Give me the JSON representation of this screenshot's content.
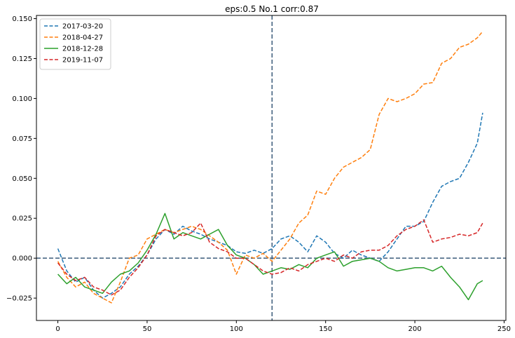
{
  "chart_data": {
    "type": "line",
    "title": "eps:0.5  No.1  corr:0.87",
    "xlabel": "",
    "ylabel": "",
    "xlim": [
      -12,
      251
    ],
    "ylim": [
      -0.039,
      0.152
    ],
    "xticks": [
      0,
      50,
      100,
      150,
      200,
      250
    ],
    "yticks": [
      -0.025,
      0.0,
      0.025,
      0.05,
      0.075,
      0.1,
      0.125,
      0.15
    ],
    "ytick_labels": [
      "−0.025",
      "0.000",
      "0.025",
      "0.050",
      "0.075",
      "0.100",
      "0.125",
      "0.150"
    ],
    "reference_lines": {
      "vertical_x": 120,
      "horizontal_y": 0.0,
      "color": "#3b5b7a"
    },
    "grid": false,
    "legend_placement": "top-left",
    "series": [
      {
        "name": "2017-03-20",
        "color": "#1f77b4",
        "dash": "dashed",
        "x": [
          0,
          5,
          10,
          15,
          20,
          25,
          30,
          35,
          40,
          45,
          50,
          55,
          60,
          65,
          70,
          75,
          80,
          85,
          90,
          95,
          100,
          105,
          110,
          115,
          120,
          125,
          130,
          135,
          140,
          145,
          150,
          155,
          160,
          165,
          170,
          175,
          180,
          185,
          190,
          195,
          200,
          205,
          210,
          215,
          220,
          225,
          230,
          235,
          238
        ],
        "values": [
          0.006,
          -0.008,
          -0.015,
          -0.012,
          -0.02,
          -0.025,
          -0.022,
          -0.018,
          -0.01,
          -0.005,
          0.002,
          0.012,
          0.018,
          0.015,
          0.02,
          0.017,
          0.015,
          0.012,
          0.01,
          0.008,
          0.004,
          0.003,
          0.005,
          0.003,
          0.006,
          0.012,
          0.014,
          0.01,
          0.004,
          0.014,
          0.01,
          0.003,
          0.0,
          0.005,
          0.002,
          0.0,
          -0.002,
          0.004,
          0.012,
          0.02,
          0.02,
          0.023,
          0.035,
          0.045,
          0.048,
          0.05,
          0.06,
          0.072,
          0.091
        ]
      },
      {
        "name": "2018-04-27",
        "color": "#ff7f0e",
        "dash": "dashed",
        "x": [
          0,
          5,
          10,
          15,
          20,
          25,
          30,
          35,
          40,
          45,
          50,
          55,
          60,
          65,
          70,
          75,
          80,
          85,
          90,
          95,
          100,
          105,
          110,
          115,
          120,
          125,
          130,
          135,
          140,
          145,
          150,
          155,
          160,
          165,
          170,
          175,
          180,
          185,
          190,
          195,
          200,
          205,
          210,
          215,
          220,
          225,
          230,
          235,
          238
        ],
        "values": [
          -0.002,
          -0.012,
          -0.018,
          -0.015,
          -0.022,
          -0.025,
          -0.028,
          -0.015,
          0.0,
          0.002,
          0.012,
          0.015,
          0.018,
          0.016,
          0.018,
          0.02,
          0.018,
          0.014,
          0.01,
          0.005,
          -0.01,
          0.002,
          0.0,
          0.003,
          -0.002,
          0.005,
          0.012,
          0.022,
          0.027,
          0.042,
          0.04,
          0.05,
          0.057,
          0.06,
          0.063,
          0.068,
          0.09,
          0.1,
          0.098,
          0.1,
          0.103,
          0.109,
          0.11,
          0.122,
          0.125,
          0.132,
          0.134,
          0.138,
          0.142
        ]
      },
      {
        "name": "2018-12-28",
        "color": "#2ca02c",
        "dash": "solid",
        "x": [
          0,
          5,
          10,
          15,
          20,
          25,
          30,
          35,
          40,
          45,
          50,
          55,
          60,
          65,
          70,
          75,
          80,
          85,
          90,
          95,
          100,
          105,
          110,
          115,
          120,
          125,
          130,
          135,
          140,
          145,
          150,
          155,
          160,
          165,
          170,
          175,
          180,
          185,
          190,
          195,
          200,
          205,
          210,
          215,
          220,
          225,
          230,
          235,
          238
        ],
        "values": [
          -0.01,
          -0.016,
          -0.012,
          -0.018,
          -0.02,
          -0.022,
          -0.015,
          -0.01,
          -0.008,
          -0.003,
          0.005,
          0.015,
          0.028,
          0.012,
          0.016,
          0.014,
          0.012,
          0.015,
          0.018,
          0.008,
          0.002,
          0.0,
          -0.004,
          -0.01,
          -0.008,
          -0.006,
          -0.007,
          -0.004,
          -0.006,
          0.0,
          0.002,
          0.004,
          -0.005,
          -0.002,
          -0.001,
          0.0,
          -0.002,
          -0.006,
          -0.008,
          -0.007,
          -0.006,
          -0.006,
          -0.008,
          -0.005,
          -0.012,
          -0.018,
          -0.026,
          -0.016,
          -0.014
        ]
      },
      {
        "name": "2019-11-07",
        "color": "#d62728",
        "dash": "dashed",
        "x": [
          0,
          5,
          10,
          15,
          20,
          25,
          30,
          35,
          40,
          45,
          50,
          55,
          60,
          65,
          70,
          75,
          80,
          85,
          90,
          95,
          100,
          105,
          110,
          115,
          120,
          125,
          130,
          135,
          140,
          145,
          150,
          155,
          160,
          165,
          170,
          175,
          180,
          185,
          190,
          195,
          200,
          205,
          210,
          215,
          220,
          225,
          230,
          235,
          238
        ],
        "values": [
          -0.003,
          -0.01,
          -0.014,
          -0.012,
          -0.018,
          -0.02,
          -0.023,
          -0.02,
          -0.012,
          -0.006,
          0.002,
          0.014,
          0.018,
          0.016,
          0.014,
          0.016,
          0.022,
          0.01,
          0.006,
          0.004,
          0.0,
          0.0,
          -0.004,
          -0.008,
          -0.01,
          -0.009,
          -0.006,
          -0.008,
          -0.004,
          -0.002,
          0.0,
          -0.002,
          0.002,
          0.0,
          0.004,
          0.005,
          0.005,
          0.008,
          0.014,
          0.018,
          0.02,
          0.024,
          0.01,
          0.012,
          0.013,
          0.015,
          0.014,
          0.016,
          0.022
        ]
      }
    ]
  }
}
